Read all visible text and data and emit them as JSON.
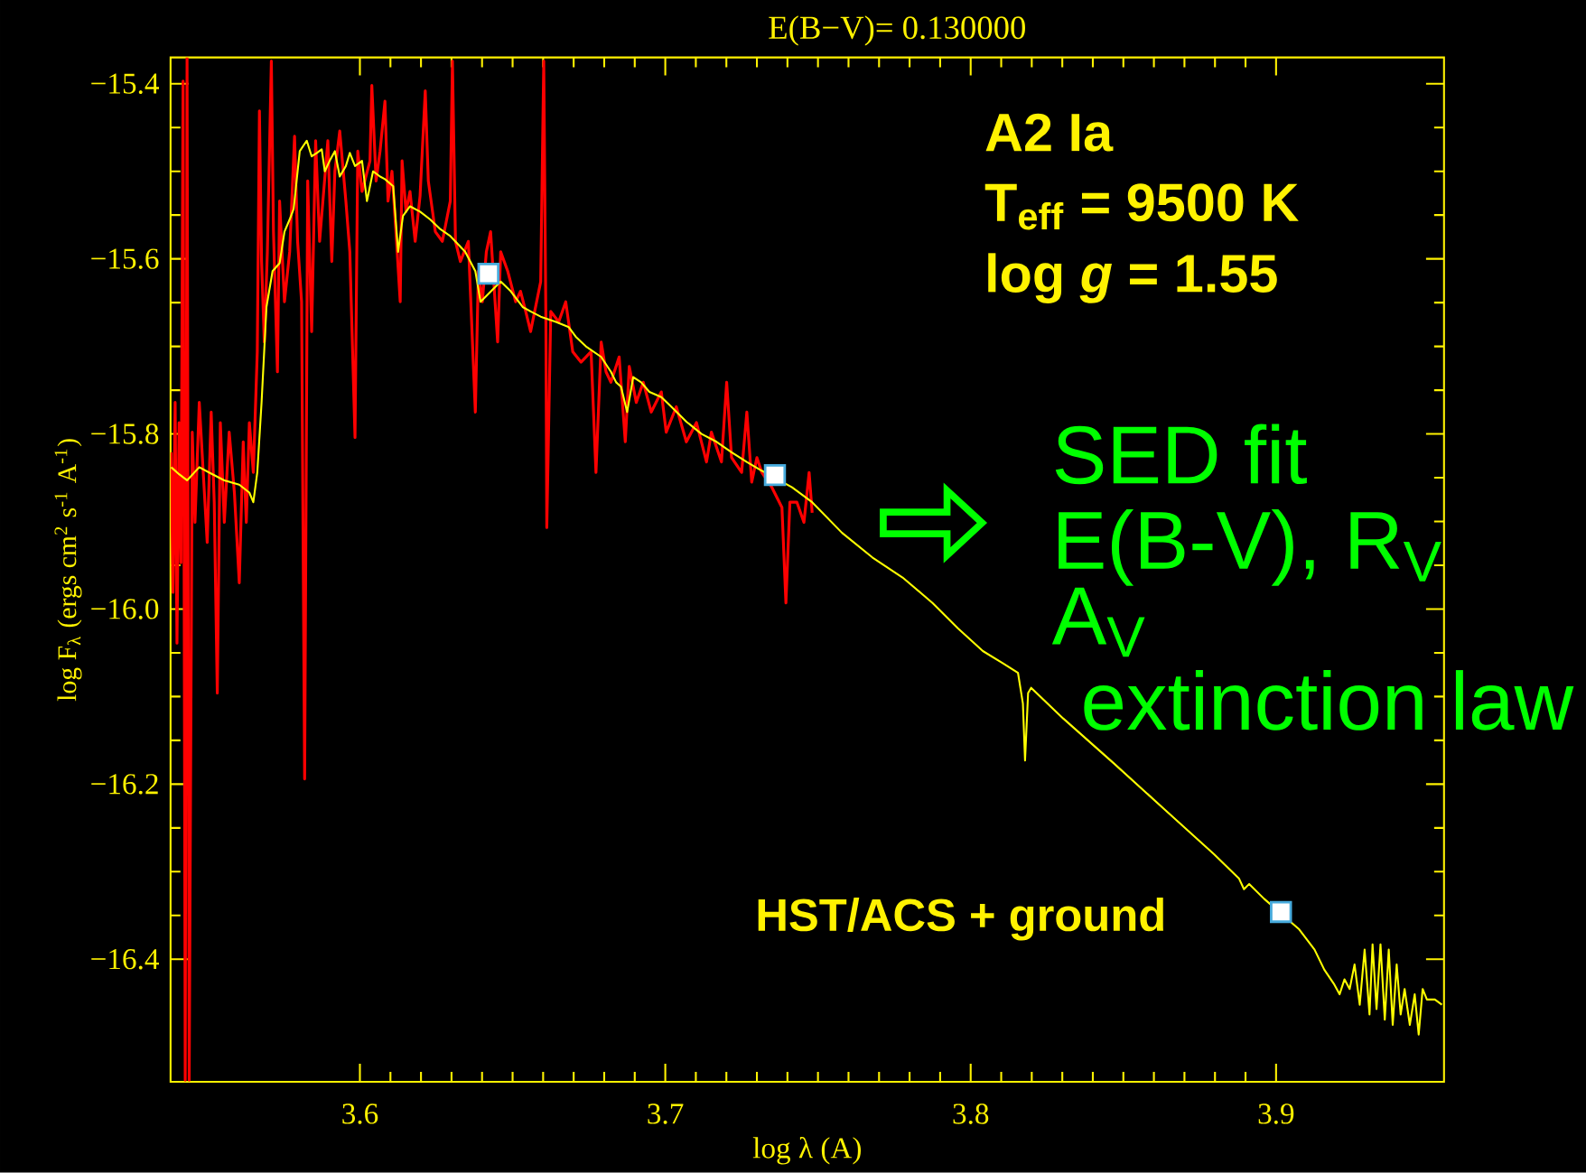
{
  "chart_data": {
    "type": "line",
    "title": "E(B−V)= 0.130000",
    "xlabel": "log λ (A)",
    "ylabel": "log F$_{λ}$ (ergs cm$^{2}$ s$^{-1}$ A$^{-1}$)",
    "xlim": [
      3.538,
      3.955
    ],
    "ylim": [
      -16.54,
      -15.37
    ],
    "xticks": [
      3.6,
      3.7,
      3.8,
      3.9
    ],
    "yticks": [
      {
        "value": -15.4,
        "label": "−15.4"
      },
      {
        "value": -15.6,
        "label": "−15.6"
      },
      {
        "value": -15.8,
        "label": "−15.8"
      },
      {
        "value": -16.0,
        "label": "−16.0"
      },
      {
        "value": -16.2,
        "label": "−16.2"
      },
      {
        "value": -16.4,
        "label": "−16.4"
      }
    ],
    "series": [
      {
        "type": "line",
        "color": "#ff0000",
        "x": [
          3.5382,
          3.5388,
          3.5395,
          3.5401,
          3.5408,
          3.5414,
          3.5421,
          3.5428,
          3.5434,
          3.5441,
          3.5451,
          3.546,
          3.5474,
          3.5487,
          3.55,
          3.5513,
          3.5523,
          3.5533,
          3.5543,
          3.5556,
          3.5572,
          3.5589,
          3.5605,
          3.5618,
          3.5628,
          3.5638,
          3.5651,
          3.5664,
          3.5671,
          3.5678,
          3.5687,
          3.5697,
          3.571,
          3.5717,
          3.573,
          3.5737,
          3.5753,
          3.577,
          3.5786,
          3.5796,
          3.5809,
          3.5819,
          3.5829,
          3.5842,
          3.5855,
          3.5868,
          3.5895,
          3.5908,
          3.5918,
          3.5934,
          3.5954,
          3.5967,
          3.5984,
          3.5993,
          3.6007,
          3.6033,
          3.6039,
          3.6053,
          3.6066,
          3.6082,
          3.6092,
          3.6105,
          3.6118,
          3.6132,
          3.6138,
          3.6151,
          3.6164,
          3.6181,
          3.6197,
          3.6214,
          3.6224,
          3.6247,
          3.627,
          3.6296,
          3.6303,
          3.6313,
          3.6329,
          3.6355,
          3.6378,
          3.6388,
          3.6401,
          3.6414,
          3.6428,
          3.6451,
          3.6461,
          3.6484,
          3.651,
          3.6526,
          3.6543,
          3.6559,
          3.6592,
          3.6602,
          3.6609,
          3.6612,
          3.6625,
          3.6651,
          3.6674,
          3.6697,
          3.6724,
          3.6757,
          3.6773,
          3.679,
          3.6806,
          3.6822,
          3.6849,
          3.6869,
          3.6882,
          3.6905,
          3.6928,
          3.6954,
          3.6987,
          3.7003,
          3.7036,
          3.7069,
          3.7102,
          3.7135,
          3.7151,
          3.7184,
          3.7201,
          3.7217,
          3.725,
          3.7267,
          3.7283,
          3.73,
          3.7316,
          3.7349,
          3.7382,
          3.7395,
          3.7408,
          3.7431,
          3.7454,
          3.7471,
          3.7481
        ],
        "values": [
          -15.821,
          -15.981,
          -15.764,
          -16.039,
          -15.787,
          -15.947,
          -15.397,
          -16.538,
          -15.37,
          -16.538,
          -15.798,
          -15.901,
          -15.764,
          -15.844,
          -15.924,
          -15.775,
          -15.878,
          -16.096,
          -15.787,
          -15.901,
          -15.798,
          -15.867,
          -15.97,
          -15.809,
          -15.901,
          -15.787,
          -15.844,
          -15.706,
          -15.431,
          -15.603,
          -15.695,
          -15.592,
          -15.374,
          -15.569,
          -15.729,
          -15.534,
          -15.649,
          -15.592,
          -15.46,
          -15.58,
          -15.649,
          -16.194,
          -15.511,
          -15.683,
          -15.465,
          -15.58,
          -15.465,
          -15.603,
          -15.5,
          -15.454,
          -15.534,
          -15.592,
          -15.804,
          -15.477,
          -15.523,
          -15.488,
          -15.402,
          -15.511,
          -15.477,
          -15.42,
          -15.534,
          -15.5,
          -15.569,
          -15.649,
          -15.488,
          -15.546,
          -15.523,
          -15.58,
          -15.528,
          -15.408,
          -15.511,
          -15.569,
          -15.58,
          -15.534,
          -15.374,
          -15.58,
          -15.603,
          -15.58,
          -15.775,
          -15.614,
          -15.649,
          -15.592,
          -15.569,
          -15.695,
          -15.592,
          -15.614,
          -15.649,
          -15.637,
          -15.66,
          -15.683,
          -15.626,
          -15.374,
          -15.672,
          -15.907,
          -15.66,
          -15.672,
          -15.649,
          -15.706,
          -15.718,
          -15.706,
          -15.844,
          -15.695,
          -15.729,
          -15.741,
          -15.712,
          -15.809,
          -15.723,
          -15.764,
          -15.741,
          -15.775,
          -15.752,
          -15.798,
          -15.769,
          -15.809,
          -15.787,
          -15.832,
          -15.798,
          -15.832,
          -15.741,
          -15.827,
          -15.844,
          -15.775,
          -15.855,
          -15.827,
          -15.844,
          -15.861,
          -15.884,
          -15.993,
          -15.878,
          -15.878,
          -15.901,
          -15.844,
          -15.89
        ]
      },
      {
        "type": "line",
        "color": "#ffff00",
        "x": [
          3.5382,
          3.5408,
          3.5434,
          3.5474,
          3.5506,
          3.5556,
          3.5605,
          3.5638,
          3.5651,
          3.5664,
          3.5678,
          3.5694,
          3.5714,
          3.5737,
          3.5753,
          3.577,
          3.5783,
          3.5803,
          3.5826,
          3.5842,
          3.5859,
          3.5875,
          3.5885,
          3.5901,
          3.5918,
          3.5934,
          3.5954,
          3.5967,
          3.5984,
          3.6007,
          3.6023,
          3.6043,
          3.6066,
          3.6082,
          3.6109,
          3.6125,
          3.6141,
          3.6164,
          3.6197,
          3.623,
          3.6263,
          3.6296,
          3.6345,
          3.6378,
          3.6395,
          3.6414,
          3.6428,
          3.6461,
          3.6494,
          3.6533,
          3.6559,
          3.6592,
          3.6642,
          3.6684,
          3.6707,
          3.674,
          3.679,
          3.6822,
          3.6839,
          3.6855,
          3.6875,
          3.6895,
          3.6921,
          3.6948,
          3.6987,
          3.702,
          3.7069,
          3.7119,
          3.7168,
          3.7217,
          3.7267,
          3.7316,
          3.7359,
          3.7415,
          3.7481,
          3.7579,
          3.7678,
          3.7777,
          3.7875,
          3.7958,
          3.804,
          3.8106,
          3.8155,
          3.8171,
          3.8178,
          3.8188,
          3.8198,
          3.8303,
          3.8468,
          3.8632,
          3.8797,
          3.8879,
          3.8895,
          3.8912,
          3.8961,
          3.9017,
          3.9076,
          3.9126,
          3.9158,
          3.9191,
          3.9208,
          3.9224,
          3.9241,
          3.9257,
          3.9274,
          3.929,
          3.9306,
          3.9316,
          3.9329,
          3.9342,
          3.9356,
          3.9369,
          3.9382,
          3.9395,
          3.9408,
          3.9421,
          3.9438,
          3.9454,
          3.9467,
          3.948,
          3.9494,
          3.952,
          3.9543
        ],
        "values": [
          -15.838,
          -15.846,
          -15.853,
          -15.838,
          -15.844,
          -15.853,
          -15.858,
          -15.867,
          -15.878,
          -15.844,
          -15.764,
          -15.655,
          -15.614,
          -15.605,
          -15.569,
          -15.555,
          -15.543,
          -15.477,
          -15.465,
          -15.483,
          -15.479,
          -15.475,
          -15.5,
          -15.488,
          -15.477,
          -15.506,
          -15.494,
          -15.479,
          -15.494,
          -15.488,
          -15.534,
          -15.5,
          -15.506,
          -15.509,
          -15.517,
          -15.592,
          -15.551,
          -15.54,
          -15.546,
          -15.555,
          -15.566,
          -15.574,
          -15.592,
          -15.614,
          -15.649,
          null,
          null,
          -15.626,
          -15.637,
          -15.655,
          -15.66,
          -15.666,
          -15.672,
          -15.678,
          -15.689,
          -15.7,
          -15.712,
          -15.729,
          -15.741,
          -15.746,
          -15.775,
          -15.735,
          -15.741,
          -15.752,
          -15.758,
          -15.769,
          -15.786,
          -15.8,
          -15.809,
          -15.821,
          -15.832,
          -15.842,
          null,
          -15.861,
          -15.878,
          -15.913,
          -15.941,
          -15.964,
          -15.993,
          -16.022,
          -16.048,
          -16.062,
          -16.073,
          -16.108,
          -16.173,
          -16.096,
          -16.09,
          -16.125,
          -16.176,
          -16.228,
          -16.28,
          -16.308,
          -16.32,
          -16.314,
          -16.331,
          null,
          -16.366,
          -16.389,
          -16.412,
          -16.429,
          -16.44,
          -16.423,
          -16.434,
          -16.406,
          -16.452,
          -16.389,
          -16.463,
          -16.383,
          -16.457,
          -16.383,
          -16.469,
          -16.389,
          -16.475,
          -16.406,
          -16.463,
          -16.434,
          -16.475,
          -16.44,
          -16.486,
          -16.434,
          -16.446,
          -16.446,
          -16.452
        ]
      },
      {
        "type": "scatter",
        "color": "#ffffff",
        "marker": "square",
        "x": [
          3.6421,
          3.7359,
          3.9016
        ],
        "values": [
          -15.617,
          -15.847,
          -16.346
        ]
      }
    ],
    "annotations": [
      "A2 Ia",
      "T$_{eff}$ = 9500 K",
      "log *g* = 1.55",
      "HST/ACS + ground",
      "SED fit",
      "E(B-V), R$_{V}$",
      "A$_{V}$",
      "extinction law"
    ]
  }
}
